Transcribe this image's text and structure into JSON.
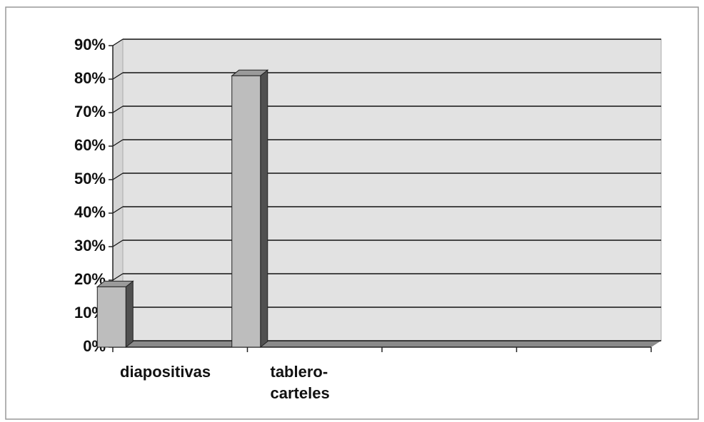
{
  "chart_data": {
    "type": "bar3d",
    "categories": [
      "diapositivas",
      "tablero-carteles",
      null,
      null
    ],
    "values": [
      18,
      81,
      null,
      null
    ],
    "color": "#bdbdbd",
    "side_color": "#505050",
    "top_color": "#9a9a9a",
    "ylim": [
      0,
      90
    ],
    "yticks": [
      {
        "value": 0,
        "label": "0%"
      },
      {
        "value": 10,
        "label": "10%"
      },
      {
        "value": 20,
        "label": "20%"
      },
      {
        "value": 30,
        "label": "30%"
      },
      {
        "value": 40,
        "label": "40%"
      },
      {
        "value": 50,
        "label": "50%"
      },
      {
        "value": 60,
        "label": "60%"
      },
      {
        "value": 70,
        "label": "70%"
      },
      {
        "value": 80,
        "label": "80%"
      },
      {
        "value": 90,
        "label": "90%"
      }
    ],
    "grid": true
  }
}
